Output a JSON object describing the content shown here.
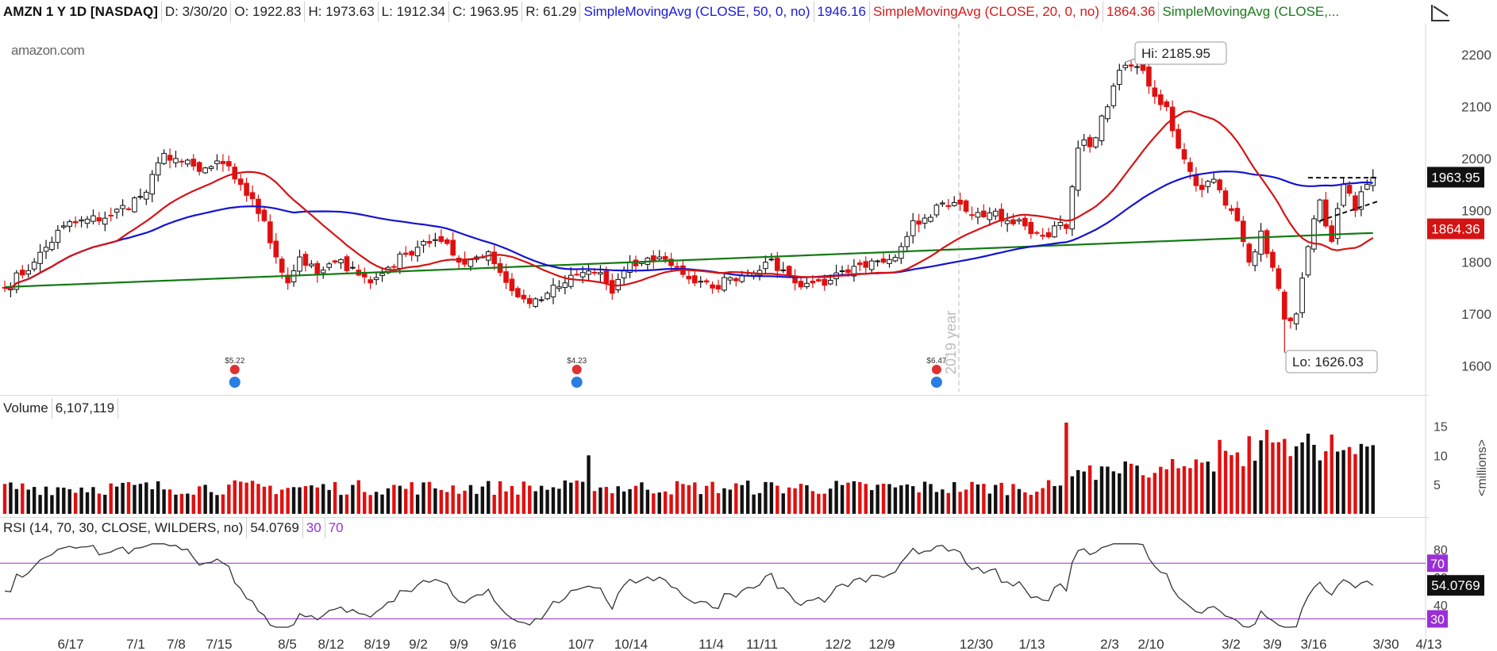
{
  "header": {
    "symbol": "AMZN 1 Y 1D [NASDAQ]",
    "date": "D: 3/30/20",
    "open": "O: 1922.83",
    "high": "H: 1973.63",
    "low": "L: 1912.34",
    "close": "C: 1963.95",
    "range": "R: 61.29",
    "sma50_label": "SimpleMovingAvg (CLOSE, 50, 0, no)",
    "sma50_value": "1946.16",
    "sma20_label": "SimpleMovingAvg (CLOSE, 20, 0, no)",
    "sma20_value": "1864.36",
    "sma200_label": "SimpleMovingAvg (CLOSE,..."
  },
  "logo": "amazon.com",
  "volume_header": {
    "label": "Volume",
    "value": "6,107,119"
  },
  "rsi_header": {
    "label": "RSI (14, 70, 30, CLOSE, WILDERS, no)",
    "value": "54.0769",
    "low": "30",
    "high": "70"
  },
  "colors": {
    "up": "#111111",
    "down": "#e01010",
    "sma50": "#1414d2",
    "sma20": "#d41414",
    "sma200": "#137a13",
    "rsi": "#333333",
    "rsi_band": "#9a2fd6"
  },
  "chart_data": [
    {
      "type": "candlestick",
      "title": "AMZN 1 Y 1D [NASDAQ]",
      "ylim": [
        1550,
        2260
      ],
      "yticks": [
        1600,
        1700,
        1800,
        1900,
        2000,
        2100,
        2200
      ],
      "x_labels": [
        "6/17",
        "7/1",
        "7/8",
        "7/15",
        "8/5",
        "8/12",
        "8/19",
        "9/2",
        "9/9",
        "9/16",
        "10/7",
        "10/14",
        "11/4",
        "11/11",
        "12/2",
        "12/9",
        "12/30",
        "1/13",
        "2/3",
        "2/10",
        "3/2",
        "3/9",
        "3/16",
        "3/30",
        "4/13"
      ],
      "year_marker": "2019 year",
      "annotations": {
        "high": "Hi: 2185.95",
        "low": "Lo: 1626.03"
      },
      "last_price": "1963.95",
      "sma20_last": "1864.36",
      "dividend_markers": [
        "$5.22",
        "$4.23",
        "$6.47"
      ],
      "anchors": [
        [
          0,
          1750
        ],
        [
          5,
          1800
        ],
        [
          10,
          1870
        ],
        [
          18,
          1890
        ],
        [
          24,
          1935
        ],
        [
          27,
          2010
        ],
        [
          29,
          2000
        ],
        [
          33,
          1975
        ],
        [
          37,
          1990
        ],
        [
          40,
          1950
        ],
        [
          44,
          1880
        ],
        [
          46,
          1810
        ],
        [
          48,
          1760
        ],
        [
          50,
          1810
        ],
        [
          53,
          1775
        ],
        [
          56,
          1800
        ],
        [
          59,
          1790
        ],
        [
          62,
          1760
        ],
        [
          65,
          1790
        ],
        [
          68,
          1815
        ],
        [
          71,
          1840
        ],
        [
          74,
          1840
        ],
        [
          77,
          1800
        ],
        [
          80,
          1810
        ],
        [
          82,
          1820
        ],
        [
          84,
          1780
        ],
        [
          86,
          1745
        ],
        [
          89,
          1720
        ],
        [
          92,
          1740
        ],
        [
          95,
          1760
        ],
        [
          98,
          1780
        ],
        [
          101,
          1780
        ],
        [
          103,
          1740
        ],
        [
          105,
          1785
        ],
        [
          108,
          1800
        ],
        [
          111,
          1810
        ],
        [
          114,
          1790
        ],
        [
          117,
          1760
        ],
        [
          120,
          1750
        ],
        [
          123,
          1770
        ],
        [
          126,
          1780
        ],
        [
          129,
          1800
        ],
        [
          132,
          1785
        ],
        [
          134,
          1760
        ],
        [
          137,
          1760
        ],
        [
          140,
          1765
        ],
        [
          143,
          1780
        ],
        [
          146,
          1790
        ],
        [
          149,
          1800
        ],
        [
          152,
          1830
        ],
        [
          154,
          1880
        ],
        [
          156,
          1885
        ],
        [
          158,
          1910
        ],
        [
          161,
          1915
        ],
        [
          164,
          1890
        ],
        [
          167,
          1895
        ],
        [
          170,
          1880
        ],
        [
          173,
          1870
        ],
        [
          176,
          1850
        ],
        [
          178,
          1870
        ],
        [
          180,
          1865
        ],
        [
          182,
          2020
        ],
        [
          185,
          2040
        ],
        [
          188,
          2140
        ],
        [
          190,
          2180
        ],
        [
          193,
          2170
        ],
        [
          195,
          2120
        ],
        [
          197,
          2100
        ],
        [
          199,
          2020
        ],
        [
          201,
          1975
        ],
        [
          203,
          1940
        ],
        [
          205,
          1960
        ],
        [
          207,
          1910
        ],
        [
          209,
          1880
        ],
        [
          211,
          1800
        ],
        [
          213,
          1860
        ],
        [
          215,
          1790
        ],
        [
          217,
          1690
        ],
        [
          219,
          1700
        ],
        [
          221,
          1830
        ],
        [
          223,
          1920
        ],
        [
          225,
          1840
        ],
        [
          227,
          1950
        ],
        [
          229,
          1900
        ],
        [
          231,
          1950
        ],
        [
          232,
          1964
        ]
      ]
    },
    {
      "type": "bar",
      "title": "Volume",
      "ylabel": "<millions>",
      "ylim": [
        0,
        16
      ],
      "yticks": [
        5,
        10,
        15
      ],
      "last_value": "6,107,119"
    },
    {
      "type": "line",
      "title": "RSI (14, 70, 30, CLOSE, WILDERS, no)",
      "ylim": [
        20,
        85
      ],
      "yticks": [
        40,
        60,
        80
      ],
      "bands": [
        30,
        70
      ],
      "last_value": "54.0769"
    }
  ]
}
